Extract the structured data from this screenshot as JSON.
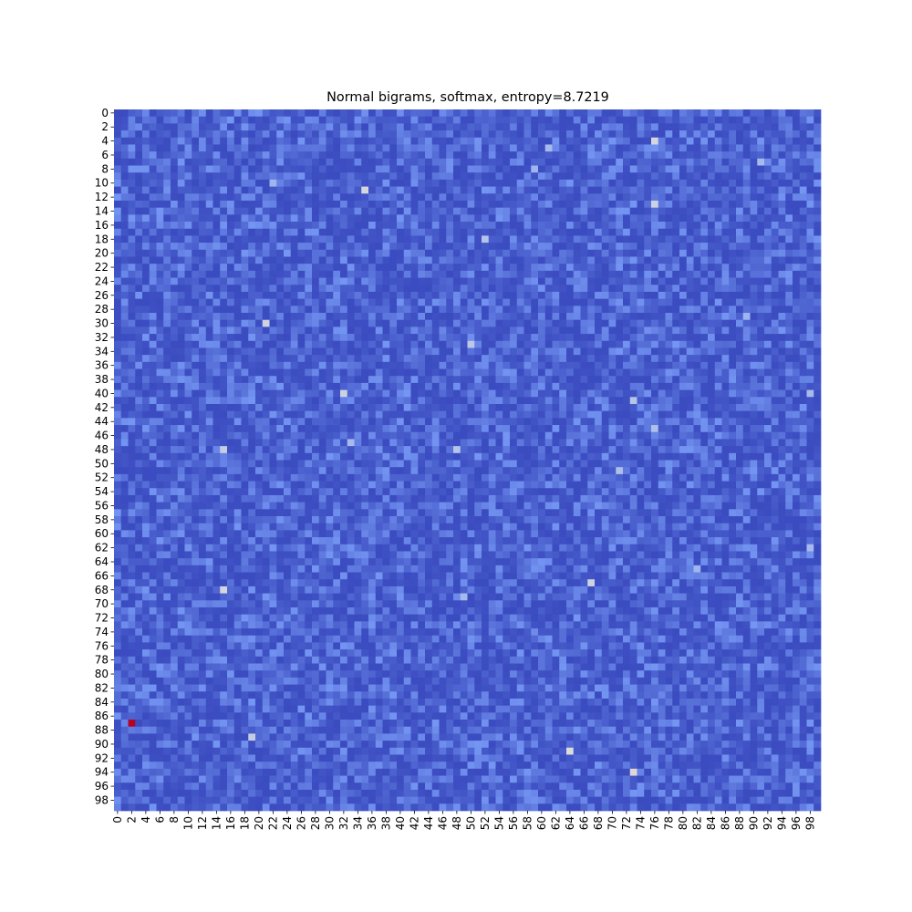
{
  "chart_data": {
    "type": "heatmap",
    "title": "Normal bigrams, softmax, entropy=8.7219",
    "xlabel": "",
    "ylabel": "",
    "rows": 100,
    "cols": 100,
    "colormap": "coolwarm",
    "colorbar": false,
    "grid": false,
    "x_tick_labels": [
      "0",
      "2",
      "4",
      "6",
      "8",
      "10",
      "12",
      "14",
      "16",
      "18",
      "20",
      "22",
      "24",
      "26",
      "28",
      "30",
      "32",
      "34",
      "36",
      "38",
      "40",
      "42",
      "44",
      "46",
      "48",
      "50",
      "52",
      "54",
      "56",
      "58",
      "60",
      "62",
      "64",
      "66",
      "68",
      "70",
      "72",
      "74",
      "76",
      "78",
      "80",
      "82",
      "84",
      "86",
      "88",
      "90",
      "92",
      "94",
      "96",
      "98"
    ],
    "y_tick_labels": [
      "0",
      "2",
      "4",
      "6",
      "8",
      "10",
      "12",
      "14",
      "16",
      "18",
      "20",
      "22",
      "24",
      "26",
      "28",
      "30",
      "32",
      "34",
      "36",
      "38",
      "40",
      "42",
      "44",
      "46",
      "48",
      "50",
      "52",
      "54",
      "56",
      "58",
      "60",
      "62",
      "64",
      "66",
      "68",
      "70",
      "72",
      "74",
      "76",
      "78",
      "80",
      "82",
      "84",
      "86",
      "88",
      "90",
      "92",
      "94",
      "96",
      "98"
    ],
    "value_scale": "relative intensity 0-1 (0 = min, 1 = max)",
    "background_value_range": [
      0.0,
      0.22
    ],
    "highlighted_cells": [
      {
        "row": 87,
        "col": 2,
        "value": 1.0
      },
      {
        "row": 94,
        "col": 73,
        "value": 0.52
      },
      {
        "row": 91,
        "col": 64,
        "value": 0.5
      },
      {
        "row": 4,
        "col": 76,
        "value": 0.48
      },
      {
        "row": 13,
        "col": 76,
        "value": 0.46
      },
      {
        "row": 11,
        "col": 35,
        "value": 0.48
      },
      {
        "row": 30,
        "col": 21,
        "value": 0.46
      },
      {
        "row": 40,
        "col": 32,
        "value": 0.46
      },
      {
        "row": 48,
        "col": 15,
        "value": 0.44
      },
      {
        "row": 68,
        "col": 15,
        "value": 0.48
      },
      {
        "row": 67,
        "col": 67,
        "value": 0.46
      },
      {
        "row": 89,
        "col": 19,
        "value": 0.44
      },
      {
        "row": 33,
        "col": 50,
        "value": 0.42
      },
      {
        "row": 18,
        "col": 52,
        "value": 0.4
      },
      {
        "row": 48,
        "col": 48,
        "value": 0.4
      },
      {
        "row": 51,
        "col": 71,
        "value": 0.38
      },
      {
        "row": 45,
        "col": 76,
        "value": 0.38
      },
      {
        "row": 41,
        "col": 73,
        "value": 0.4
      },
      {
        "row": 7,
        "col": 91,
        "value": 0.36
      },
      {
        "row": 29,
        "col": 89,
        "value": 0.34
      },
      {
        "row": 40,
        "col": 98,
        "value": 0.36
      },
      {
        "row": 62,
        "col": 98,
        "value": 0.36
      },
      {
        "row": 65,
        "col": 82,
        "value": 0.34
      },
      {
        "row": 69,
        "col": 49,
        "value": 0.36
      },
      {
        "row": 5,
        "col": 61,
        "value": 0.36
      },
      {
        "row": 8,
        "col": 59,
        "value": 0.34
      },
      {
        "row": 47,
        "col": 33,
        "value": 0.36
      },
      {
        "row": 10,
        "col": 22,
        "value": 0.34
      }
    ]
  }
}
